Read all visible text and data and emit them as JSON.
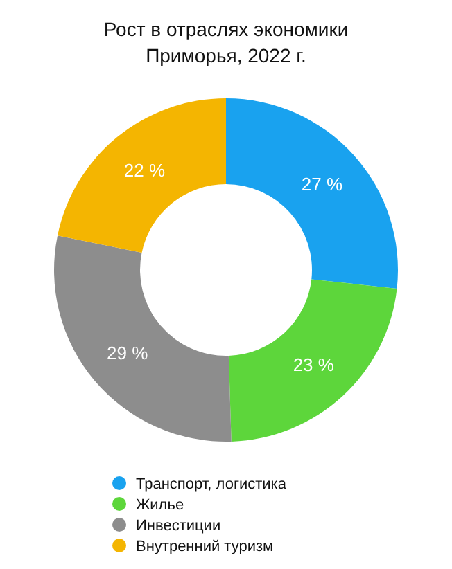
{
  "chart_data": {
    "type": "donut",
    "title": "Рост в отраслях экономики\nПриморья, 2022 г.",
    "categories": [
      "Транспорт, логистика",
      "Жилье",
      "Инвестиции",
      "Внутренний туризм"
    ],
    "values": [
      27,
      23,
      29,
      22
    ],
    "colors": [
      "#19a2ef",
      "#5dd63b",
      "#8d8d8d",
      "#f4b501"
    ],
    "value_labels": [
      "27 %",
      "23 %",
      "29 %",
      "22 %"
    ],
    "legend": "bottom"
  }
}
